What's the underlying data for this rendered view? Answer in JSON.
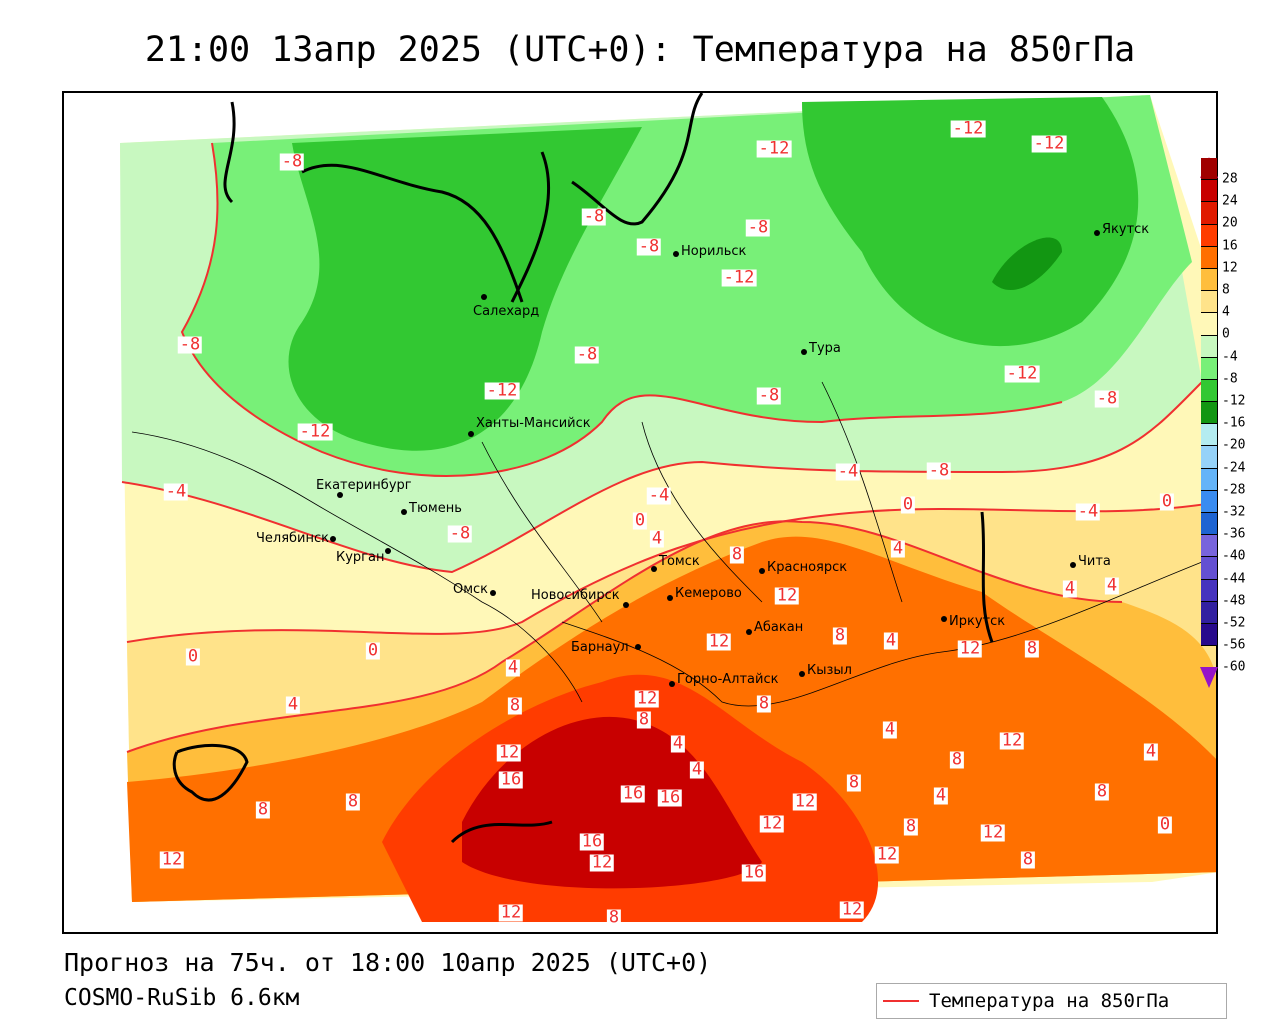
{
  "title": "21:00 13апр 2025 (UTC+0): Температура на 850гПа",
  "forecast": "Прогноз на 75ч. от 18:00 10апр 2025 (UTC+0)",
  "model": "COSMO-RuSib 6.6км",
  "legend": {
    "label": "Температура на 850гПа",
    "line_color": "#f03030"
  },
  "colorbar": {
    "labels": [
      "28",
      "24",
      "20",
      "16",
      "12",
      "8",
      "4",
      "0",
      "-4",
      "-8",
      "-12",
      "-16",
      "-20",
      "-24",
      "-28",
      "-32",
      "-36",
      "-40",
      "-44",
      "-48",
      "-52",
      "-56",
      "-60"
    ],
    "colors": [
      "#a00000",
      "#c80000",
      "#e01a00",
      "#ff3c00",
      "#ff7000",
      "#ffbe3c",
      "#ffe38a",
      "#fff8b8",
      "#c8f8c0",
      "#78f078",
      "#32c832",
      "#129612",
      "#b4ecf0",
      "#96d2f8",
      "#64b4f8",
      "#3a8cf0",
      "#1e64d2",
      "#7864dc",
      "#6450d2",
      "#4632be",
      "#3220a0",
      "#280a8c"
    ],
    "top_arrow": "#e01e8c",
    "bottom_arrow": "#9614c8"
  },
  "cities": [
    "Салехард",
    "Норильск",
    "Якутск",
    "Тура",
    "Ханты-Мансийск",
    "Екатеринбург",
    "Тюмень",
    "Челябинск",
    "Курган",
    "Омск",
    "Новосибирск",
    "Томск",
    "Кемерово",
    "Красноярск",
    "Абакан",
    "Барнаул",
    "Горно-Алтайск",
    "Кызыл",
    "Иркутск",
    "Чита"
  ],
  "contour_labels": [
    "-8",
    "-12",
    "-12",
    "-12",
    "-8",
    "-8",
    "-8",
    "-12",
    "-8",
    "-8",
    "-12",
    "-8",
    "-12",
    "-8",
    "-12",
    "-4",
    "-4",
    "-4",
    "-8",
    "0",
    "-4",
    "0",
    "-8",
    "0",
    "4",
    "8",
    "4",
    "4",
    "4",
    "12",
    "8",
    "4",
    "12",
    "8",
    "0",
    "0",
    "4",
    "12",
    "4",
    "8",
    "12",
    "8",
    "4",
    "8",
    "12",
    "4",
    "12",
    "4",
    "16",
    "4",
    "8",
    "8",
    "4",
    "8",
    "8",
    "8",
    "16",
    "16",
    "12",
    "12",
    "8",
    "12",
    "0",
    "12",
    "16",
    "12",
    "16",
    "12",
    "8",
    "12",
    "8",
    "12"
  ]
}
